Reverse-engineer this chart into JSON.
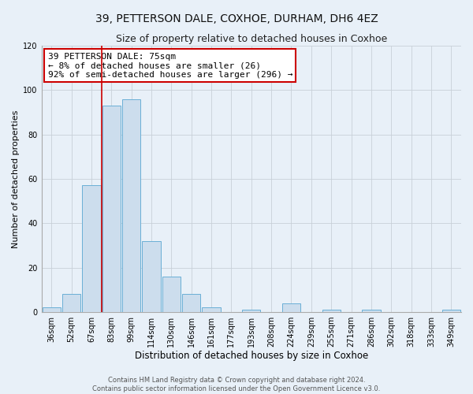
{
  "title": "39, PETTERSON DALE, COXHOE, DURHAM, DH6 4EZ",
  "subtitle": "Size of property relative to detached houses in Coxhoe",
  "xlabel": "Distribution of detached houses by size in Coxhoe",
  "ylabel": "Number of detached properties",
  "bar_color": "#ccdded",
  "bar_edge_color": "#6aafd6",
  "background_color": "#e8f0f8",
  "grid_color": "#c8d0d8",
  "categories": [
    "36sqm",
    "52sqm",
    "67sqm",
    "83sqm",
    "99sqm",
    "114sqm",
    "130sqm",
    "146sqm",
    "161sqm",
    "177sqm",
    "193sqm",
    "208sqm",
    "224sqm",
    "239sqm",
    "255sqm",
    "271sqm",
    "286sqm",
    "302sqm",
    "318sqm",
    "333sqm",
    "349sqm"
  ],
  "values": [
    2,
    8,
    57,
    93,
    96,
    32,
    16,
    8,
    2,
    0,
    1,
    0,
    4,
    0,
    1,
    0,
    1,
    0,
    0,
    0,
    1
  ],
  "ylim": [
    0,
    120
  ],
  "yticks": [
    0,
    20,
    40,
    60,
    80,
    100,
    120
  ],
  "property_line_label": "39 PETTERSON DALE: 75sqm",
  "annotation_line1": "← 8% of detached houses are smaller (26)",
  "annotation_line2": "92% of semi-detached houses are larger (296) →",
  "annotation_box_color": "#ffffff",
  "annotation_box_edge_color": "#cc0000",
  "vline_color": "#cc0000",
  "footer_line1": "Contains HM Land Registry data © Crown copyright and database right 2024.",
  "footer_line2": "Contains public sector information licensed under the Open Government Licence v3.0.",
  "title_fontsize": 10,
  "subtitle_fontsize": 9,
  "xlabel_fontsize": 8.5,
  "ylabel_fontsize": 8,
  "tick_fontsize": 7,
  "annotation_fontsize": 8,
  "footer_fontsize": 6,
  "line_x_index": 2.5
}
